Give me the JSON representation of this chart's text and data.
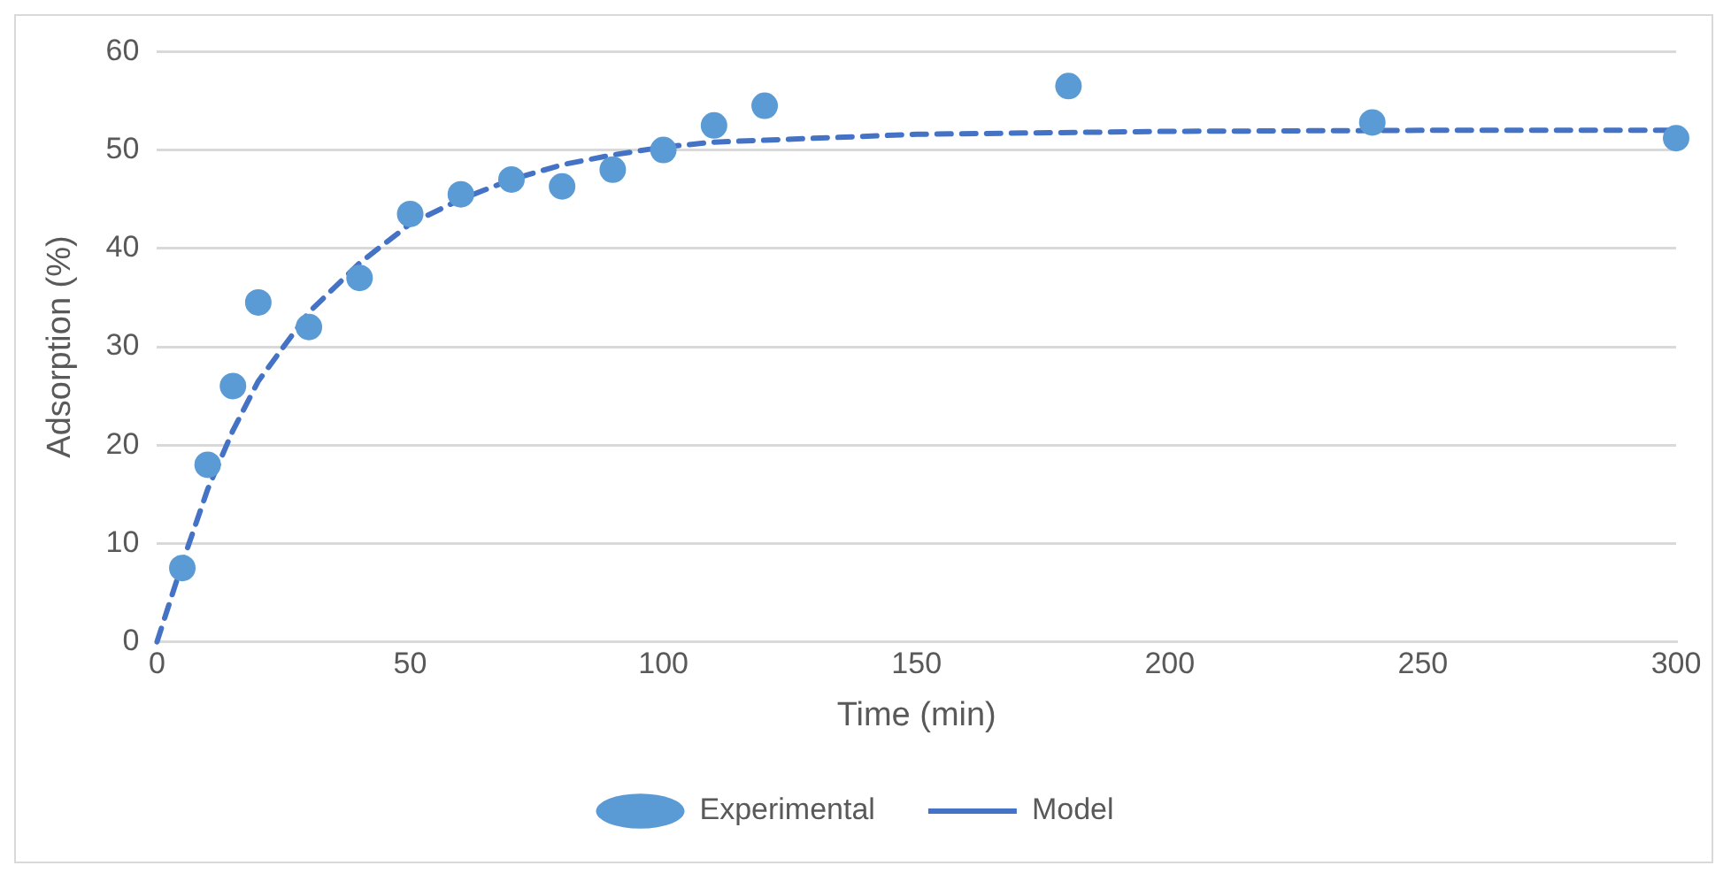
{
  "chart_data": {
    "type": "scatter",
    "xlabel": "Time (min)",
    "ylabel": "Adsorption (%)",
    "xlim": [
      0,
      300
    ],
    "xticks": [
      0,
      50,
      100,
      150,
      200,
      250,
      300
    ],
    "ylim": [
      0,
      60
    ],
    "yticks": [
      0,
      10,
      20,
      30,
      40,
      50,
      60
    ],
    "grid": "y",
    "legend": "bottom",
    "series": [
      {
        "name": "Experimental",
        "type": "scatter",
        "color": "#5b9bd5",
        "marker": "circle",
        "x": [
          5,
          10,
          15,
          20,
          30,
          40,
          50,
          60,
          70,
          80,
          90,
          100,
          110,
          120,
          180,
          240,
          300
        ],
        "values": [
          7.5,
          18,
          26,
          34.5,
          32,
          37,
          43.5,
          45.5,
          47,
          46.3,
          48,
          50,
          52.5,
          54.5,
          56.5,
          52.8,
          51.2
        ]
      },
      {
        "name": "Model",
        "type": "line",
        "color": "#4472c4",
        "marker": "none",
        "line_style": "dashed",
        "x": [
          0,
          5,
          10,
          15,
          20,
          30,
          40,
          50,
          60,
          70,
          80,
          90,
          100,
          110,
          120,
          150,
          200,
          250,
          300
        ],
        "values": [
          0,
          8,
          15.5,
          21.5,
          26.5,
          33.5,
          38.5,
          42.5,
          45,
          47,
          48.5,
          49.5,
          50.3,
          50.8,
          51,
          51.6,
          51.9,
          52,
          52
        ]
      }
    ]
  }
}
